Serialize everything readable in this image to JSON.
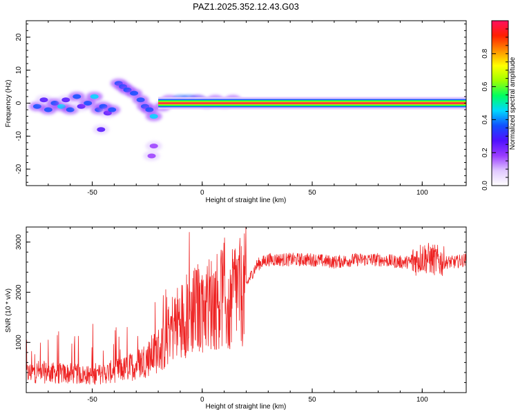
{
  "title": "PAZ1.2025.352.12.43.G03",
  "colors": {
    "snr_line": "#ee2222",
    "axes": "#000000",
    "colormap": [
      "#ffffff",
      "#e0c8ff",
      "#9a3cff",
      "#5010ff",
      "#1050ff",
      "#00d8ff",
      "#00ff60",
      "#a0ff00",
      "#ffff00",
      "#ff9000",
      "#ff2000",
      "#ff1060"
    ]
  },
  "chart_data": [
    {
      "type": "heatmap",
      "name": "spectrogram",
      "xlabel": "Height of straight line (km)",
      "ylabel": "Frequency (Hz)",
      "xlim": [
        -80,
        120
      ],
      "ylim": [
        -25,
        25
      ],
      "xticks": [
        -50,
        0,
        50,
        100
      ],
      "yticks": [
        -20,
        -10,
        0,
        10,
        20
      ],
      "colorbar": {
        "label": "Normalized spectral amplitude",
        "range": [
          0,
          1
        ],
        "ticks": [
          0.0,
          0.2,
          0.4,
          0.6,
          0.8
        ]
      },
      "ridge": {
        "x_start": -20,
        "x_end": 120,
        "frequency": 0,
        "description": "strong narrow signal near 0 Hz, scattered weak blobs for heights below -20 km"
      },
      "blobs": [
        {
          "x": -75,
          "y": -1,
          "a": 0.35
        },
        {
          "x": -72,
          "y": 1,
          "a": 0.3
        },
        {
          "x": -70,
          "y": -2,
          "a": 0.4
        },
        {
          "x": -67,
          "y": 0,
          "a": 0.35
        },
        {
          "x": -64,
          "y": -1,
          "a": 0.45
        },
        {
          "x": -62,
          "y": 1,
          "a": 0.3
        },
        {
          "x": -60,
          "y": -2,
          "a": 0.4
        },
        {
          "x": -57,
          "y": 2,
          "a": 0.35
        },
        {
          "x": -55,
          "y": -1,
          "a": 0.3
        },
        {
          "x": -52,
          "y": 0,
          "a": 0.4
        },
        {
          "x": -49,
          "y": 2,
          "a": 0.45
        },
        {
          "x": -47,
          "y": -2,
          "a": 0.35
        },
        {
          "x": -45,
          "y": -1,
          "a": 0.4
        },
        {
          "x": -43,
          "y": -3,
          "a": 0.3
        },
        {
          "x": -41,
          "y": -2,
          "a": 0.35
        },
        {
          "x": -38,
          "y": 6,
          "a": 0.35
        },
        {
          "x": -36,
          "y": 5,
          "a": 0.4
        },
        {
          "x": -34,
          "y": 4,
          "a": 0.4
        },
        {
          "x": -31,
          "y": 3,
          "a": 0.35
        },
        {
          "x": -28,
          "y": 1,
          "a": 0.4
        },
        {
          "x": -26,
          "y": -1,
          "a": 0.4
        },
        {
          "x": -24,
          "y": -2,
          "a": 0.35
        },
        {
          "x": -22,
          "y": -4,
          "a": 0.45
        },
        {
          "x": -18,
          "y": -1,
          "a": 0.35
        },
        {
          "x": -15,
          "y": 1,
          "a": 0.5
        },
        {
          "x": -10,
          "y": 1,
          "a": 0.9
        },
        {
          "x": -6,
          "y": 1,
          "a": 0.8
        },
        {
          "x": -2,
          "y": 1,
          "a": 0.6
        },
        {
          "x": 2,
          "y": 0,
          "a": 0.55
        },
        {
          "x": 6,
          "y": 1,
          "a": 0.5
        },
        {
          "x": 10,
          "y": 0,
          "a": 0.45
        },
        {
          "x": 14,
          "y": 1,
          "a": 0.5
        },
        {
          "x": -46,
          "y": -8,
          "a": 0.25
        },
        {
          "x": -22,
          "y": -13,
          "a": 0.2
        },
        {
          "x": -23,
          "y": -16,
          "a": 0.2
        }
      ]
    },
    {
      "type": "line",
      "name": "snr",
      "xlabel": "Height of straight line (km)",
      "ylabel": "SNR (10 * v/v)",
      "xlim": [
        -80,
        120
      ],
      "ylim": [
        0,
        3300
      ],
      "xticks": [
        -50,
        0,
        50,
        100
      ],
      "yticks": [
        1000,
        2000,
        3000
      ],
      "series": [
        {
          "name": "SNR",
          "x": [
            -80,
            -75,
            -70,
            -65,
            -60,
            -55,
            -50,
            -45,
            -40,
            -35,
            -30,
            -25,
            -20,
            -17,
            -15,
            -10,
            -5,
            0,
            5,
            10,
            12,
            15,
            18,
            20,
            23,
            25,
            30,
            40,
            50,
            60,
            70,
            80,
            90,
            95,
            100,
            105,
            110,
            115,
            120
          ],
          "y": [
            380,
            420,
            400,
            380,
            380,
            360,
            340,
            380,
            430,
            470,
            560,
            680,
            850,
            950,
            1250,
            1450,
            1600,
            1750,
            1800,
            1950,
            1500,
            2100,
            1950,
            2150,
            2400,
            2550,
            2650,
            2650,
            2650,
            2600,
            2650,
            2650,
            2600,
            2600,
            2700,
            2650,
            2600,
            2600,
            2650
          ]
        }
      ]
    }
  ]
}
